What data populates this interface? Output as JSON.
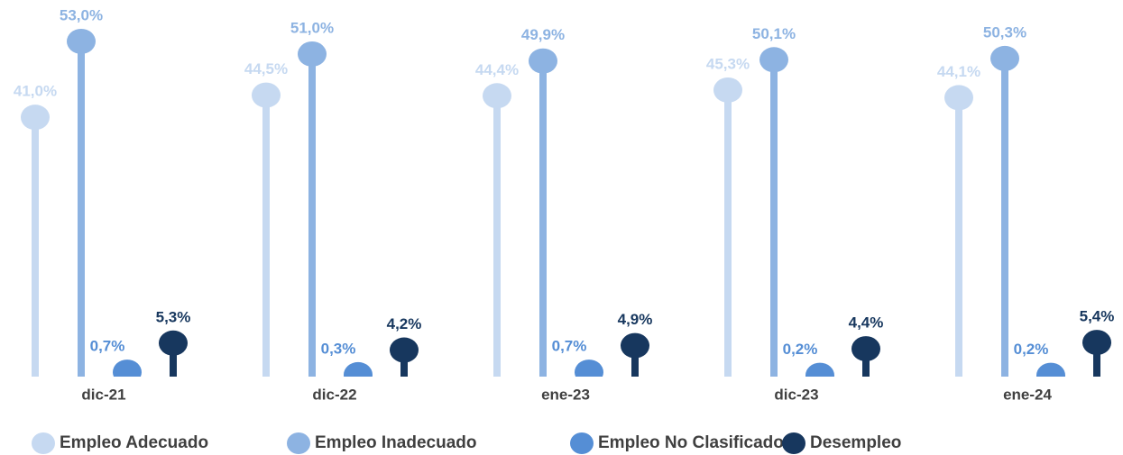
{
  "chart_data": {
    "type": "lollipop",
    "categories": [
      "dic-21",
      "dic-22",
      "ene-23",
      "dic-23",
      "ene-24"
    ],
    "series": [
      {
        "name": "Empleo Adecuado",
        "color": "#c6d9f1",
        "values": [
          41.0,
          44.5,
          44.4,
          45.3,
          44.1
        ],
        "value_labels": [
          "41,0%",
          "44,5%",
          "44,4%",
          "45,3%",
          "44,1%"
        ]
      },
      {
        "name": "Empleo Inadecuado",
        "color": "#8db3e2",
        "values": [
          53.0,
          51.0,
          49.9,
          50.1,
          50.3
        ],
        "value_labels": [
          "53,0%",
          "51,0%",
          "49,9%",
          "50,1%",
          "50,3%"
        ]
      },
      {
        "name": "Empleo No Clasificado",
        "color": "#558ed5",
        "values": [
          0.7,
          0.3,
          0.7,
          0.2,
          0.2
        ],
        "value_labels": [
          "0,7%",
          "0,3%",
          "0,7%",
          "0,2%",
          "0,2%"
        ]
      },
      {
        "name": "Desempleo",
        "color": "#17375e",
        "values": [
          5.3,
          4.2,
          4.9,
          4.4,
          5.4
        ],
        "value_labels": [
          "5,3%",
          "4,2%",
          "4,9%",
          "4,4%",
          "5,4%"
        ]
      }
    ],
    "legend": "bottom"
  }
}
